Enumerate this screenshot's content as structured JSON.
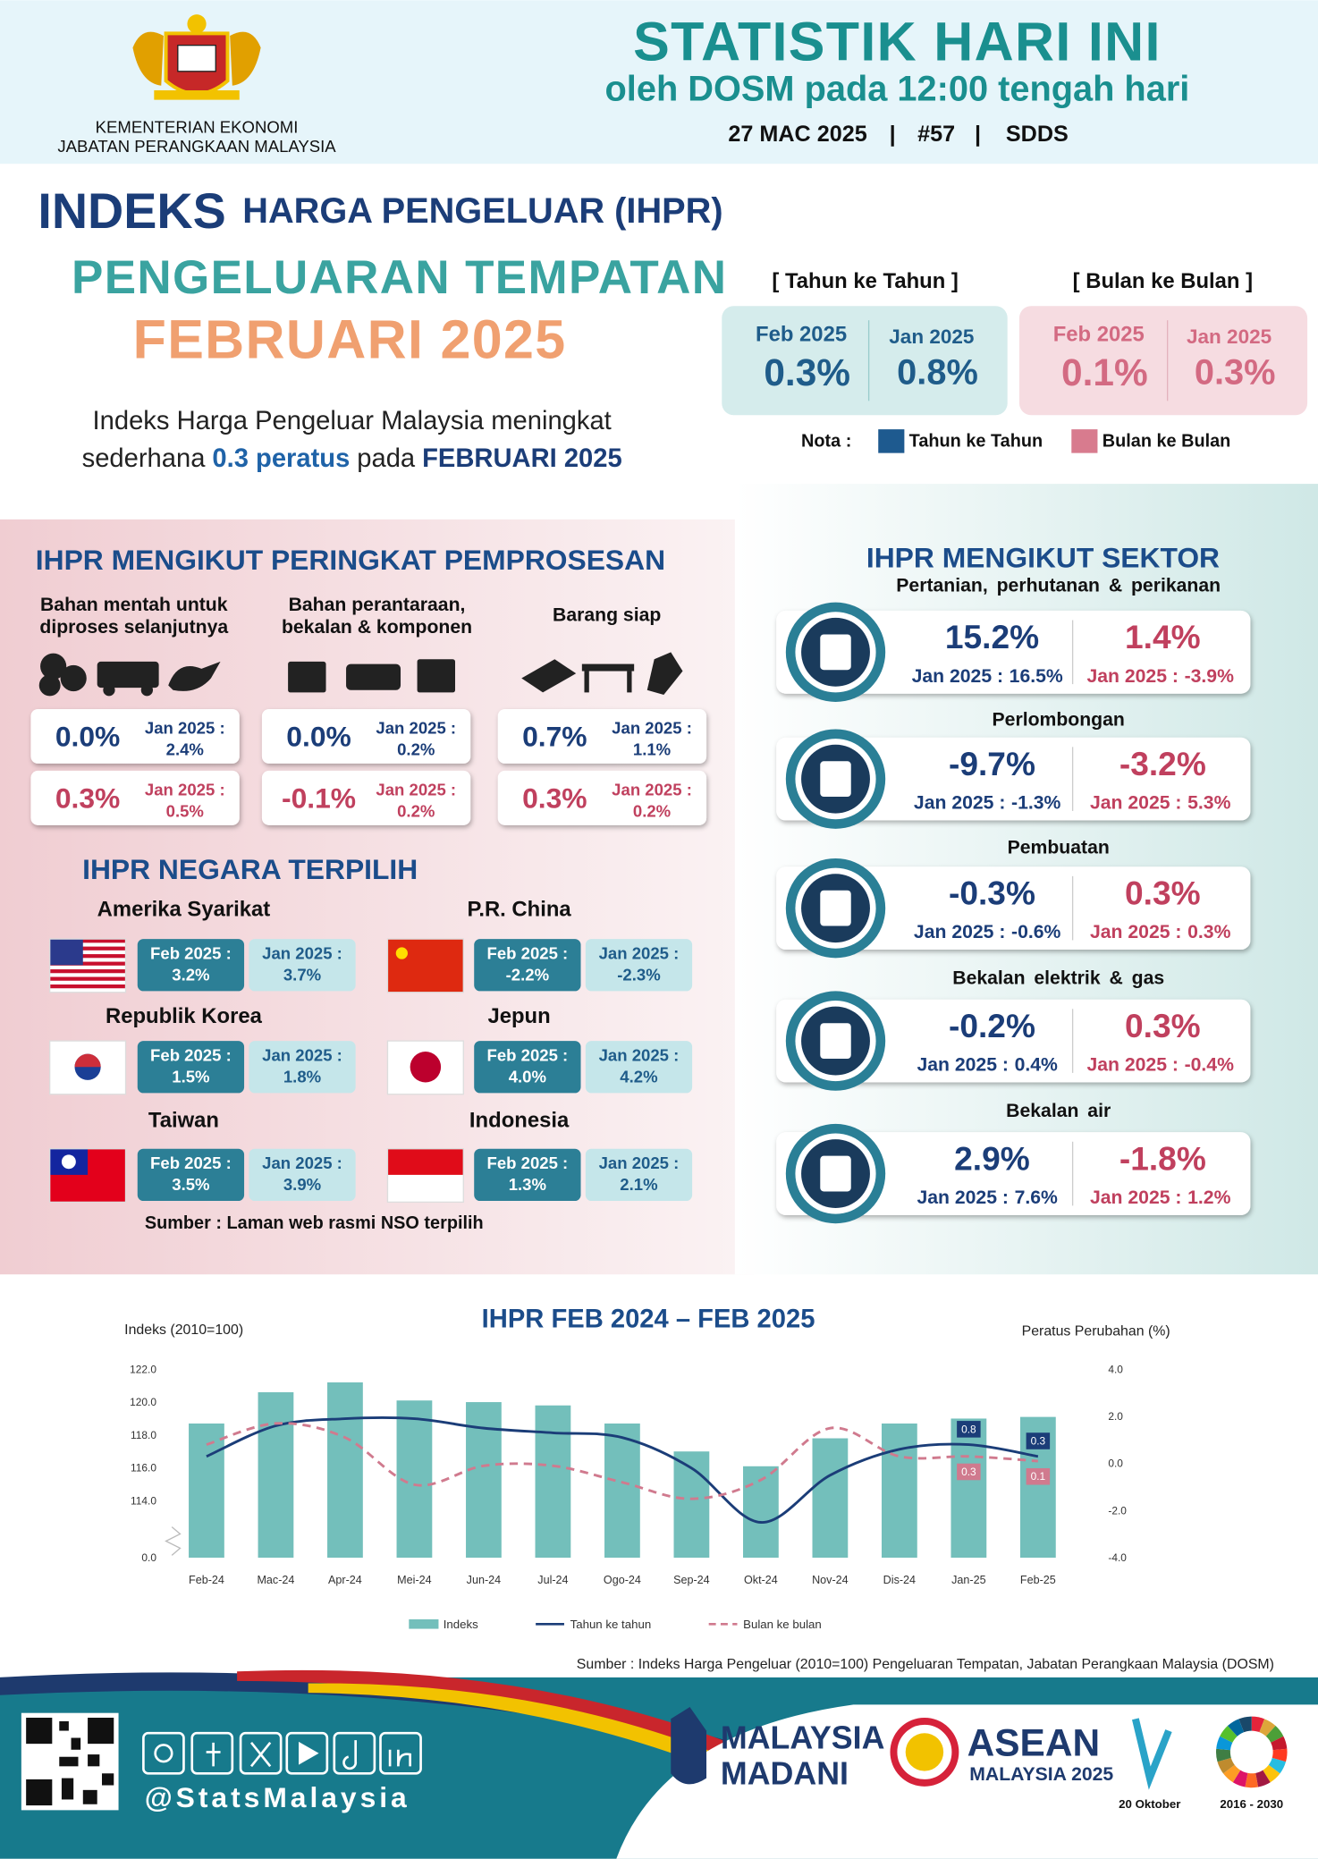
{
  "header": {
    "ministry": [
      "KEMENTERIAN EKONOMI",
      "JABATAN PERANGKAAN MALAYSIA"
    ],
    "title": "STATISTIK HARI INI",
    "subtitle": "oleh DOSM pada 12:00 tengah hari",
    "date": "27 MAC 2025",
    "separator": "|",
    "issue": "#57",
    "standard": "SDDS"
  },
  "intro": {
    "title_big": "INDEKS",
    "title_rest": "HARGA PENGELUAR (IHPR)",
    "subtitle": "PENGELUARAN TEMPATAN",
    "period": "FEBRUARI 2025",
    "summary_line1": "Indeks Harga Pengeluar Malaysia meningkat",
    "summary_line2": [
      "sederhana",
      "0.3 peratus",
      "pada",
      "FEBRUARI 2025"
    ]
  },
  "headline": {
    "yoy": {
      "label": "[ Tahun ke Tahun ]",
      "current_label": "Feb 2025",
      "current": "0.3%",
      "previous_label": "Jan 2025",
      "previous": "0.8%"
    },
    "mom": {
      "label": "[ Bulan ke Bulan ]",
      "current_label": "Feb 2025",
      "current": "0.1%",
      "previous_label": "Jan 2025",
      "previous": "0.3%"
    }
  },
  "note": {
    "label": "Nota :",
    "yoy": "Tahun ke Tahun",
    "mom": "Bulan ke Bulan"
  },
  "processing": {
    "title": "IHPR MENGIKUT PERINGKAT PEMPROSESAN",
    "prev_label": "Jan 2025 :",
    "stages": [
      {
        "name": [
          "Bahan mentah untuk",
          "diproses selanjutnya"
        ],
        "yoy": "0.0%",
        "yoy_prev": "2.4%",
        "mom": "0.3%",
        "mom_prev": "0.5%"
      },
      {
        "name": [
          "Bahan perantaraan,",
          "bekalan & komponen"
        ],
        "yoy": "0.0%",
        "yoy_prev": "0.2%",
        "mom": "-0.1%",
        "mom_prev": "0.2%"
      },
      {
        "name": [
          "Barang siap"
        ],
        "yoy": "0.7%",
        "yoy_prev": "1.1%",
        "mom": "0.3%",
        "mom_prev": "0.2%"
      }
    ]
  },
  "countries": {
    "title": "IHPR NEGARA TERPILIH",
    "feb_label": "Feb 2025 :",
    "jan_label": "Jan 2025 :",
    "items": [
      {
        "name": "Amerika Syarikat",
        "feb": "3.2%",
        "jan": "3.7%"
      },
      {
        "name": "P.R. China",
        "feb": "-2.2%",
        "jan": "-2.3%"
      },
      {
        "name": "Republik Korea",
        "feb": "1.5%",
        "jan": "1.8%"
      },
      {
        "name": "Jepun",
        "feb": "4.0%",
        "jan": "4.2%"
      },
      {
        "name": "Taiwan",
        "feb": "3.5%",
        "jan": "3.9%"
      },
      {
        "name": "Indonesia",
        "feb": "1.3%",
        "jan": "2.1%"
      }
    ],
    "source": "Sumber : Laman web rasmi NSO terpilih"
  },
  "sectors": {
    "title": "IHPR MENGIKUT SEKTOR",
    "prev_label": "Jan 2025 :",
    "items": [
      {
        "name": "Pertanian, perhutanan & perikanan",
        "yoy": "15.2%",
        "yoy_prev": "16.5%",
        "mom": "1.4%",
        "mom_prev": "-3.9%"
      },
      {
        "name": "Perlombongan",
        "yoy": "-9.7%",
        "yoy_prev": "-1.3%",
        "mom": "-3.2%",
        "mom_prev": "5.3%"
      },
      {
        "name": "Pembuatan",
        "yoy": "-0.3%",
        "yoy_prev": "-0.6%",
        "mom": "0.3%",
        "mom_prev": "0.3%"
      },
      {
        "name": "Bekalan elektrik & gas",
        "yoy": "-0.2%",
        "yoy_prev": "0.4%",
        "mom": "0.3%",
        "mom_prev": "-0.4%"
      },
      {
        "name": "Bekalan air",
        "yoy": "2.9%",
        "yoy_prev": "7.6%",
        "mom": "-1.8%",
        "mom_prev": "1.2%"
      }
    ]
  },
  "chart_data": {
    "type": "bar",
    "title": "IHPR FEB 2024 – FEB 2025",
    "ylabel": "Indeks (2010=100)",
    "y2label": "Peratus Perubahan (%)",
    "categories": [
      "Feb-24",
      "Mac-24",
      "Apr-24",
      "Mei-24",
      "Jun-24",
      "Jul-24",
      "Ogo-24",
      "Sep-24",
      "Okt-24",
      "Nov-24",
      "Dis-24",
      "Jan-25",
      "Feb-25"
    ],
    "series": [
      {
        "name": "Indeks",
        "kind": "bar",
        "color": "#73bfbb",
        "values": [
          118.7,
          120.6,
          121.2,
          120.1,
          120.0,
          119.8,
          118.7,
          117.0,
          116.1,
          117.8,
          118.7,
          119.0,
          119.1
        ]
      },
      {
        "name": "Tahun ke tahun",
        "kind": "line",
        "axis": "y2",
        "color": "#1b3d78",
        "values": [
          0.3,
          1.6,
          1.9,
          1.9,
          1.5,
          1.3,
          1.1,
          -0.2,
          -2.5,
          -0.5,
          0.6,
          0.8,
          0.3
        ],
        "value_labels": [
          null,
          null,
          null,
          null,
          null,
          null,
          null,
          null,
          null,
          null,
          null,
          "0.8",
          "0.3"
        ]
      },
      {
        "name": "Bulan ke bulan",
        "kind": "line",
        "axis": "y2",
        "dashed": true,
        "color": "#d07a8e",
        "values": [
          0.8,
          1.7,
          1.1,
          -0.9,
          -0.1,
          -0.1,
          -0.8,
          -1.5,
          -0.7,
          1.5,
          0.3,
          0.3,
          0.1
        ],
        "value_labels": [
          null,
          null,
          null,
          null,
          null,
          null,
          null,
          null,
          null,
          null,
          null,
          "0.3",
          "0.1"
        ]
      }
    ],
    "ylim": [
      0,
      122
    ],
    "ybreak": true,
    "yticks": [
      {
        "value": 0,
        "label": "0.0"
      },
      {
        "value": 114,
        "label": "114.0"
      },
      {
        "value": 116,
        "label": "116.0"
      },
      {
        "value": 118,
        "label": "118.0"
      },
      {
        "value": 120,
        "label": "120.0"
      },
      {
        "value": 122,
        "label": "122.0"
      }
    ],
    "y2lim": [
      -4,
      4
    ],
    "y2ticks": [
      {
        "value": -4,
        "label": "-4.0"
      },
      {
        "value": -2,
        "label": "-2.0"
      },
      {
        "value": 0,
        "label": "0.0"
      },
      {
        "value": 2,
        "label": "2.0"
      },
      {
        "value": 4,
        "label": "4.0"
      }
    ],
    "grid": false,
    "legend": "bottom",
    "source": "Sumber : Indeks Harga Pengeluar (2010=100) Pengeluaran Tempatan, Jabatan Perangkaan Malaysia (DOSM)"
  },
  "footer": {
    "handle": "@StatsMalaysia",
    "madani": [
      "MALAYSIA",
      "MADANI"
    ],
    "asean": [
      "ASEAN",
      "MALAYSIA 2025"
    ],
    "census_date": "20 Oktober",
    "sdg_years": "2016 - 2030"
  }
}
